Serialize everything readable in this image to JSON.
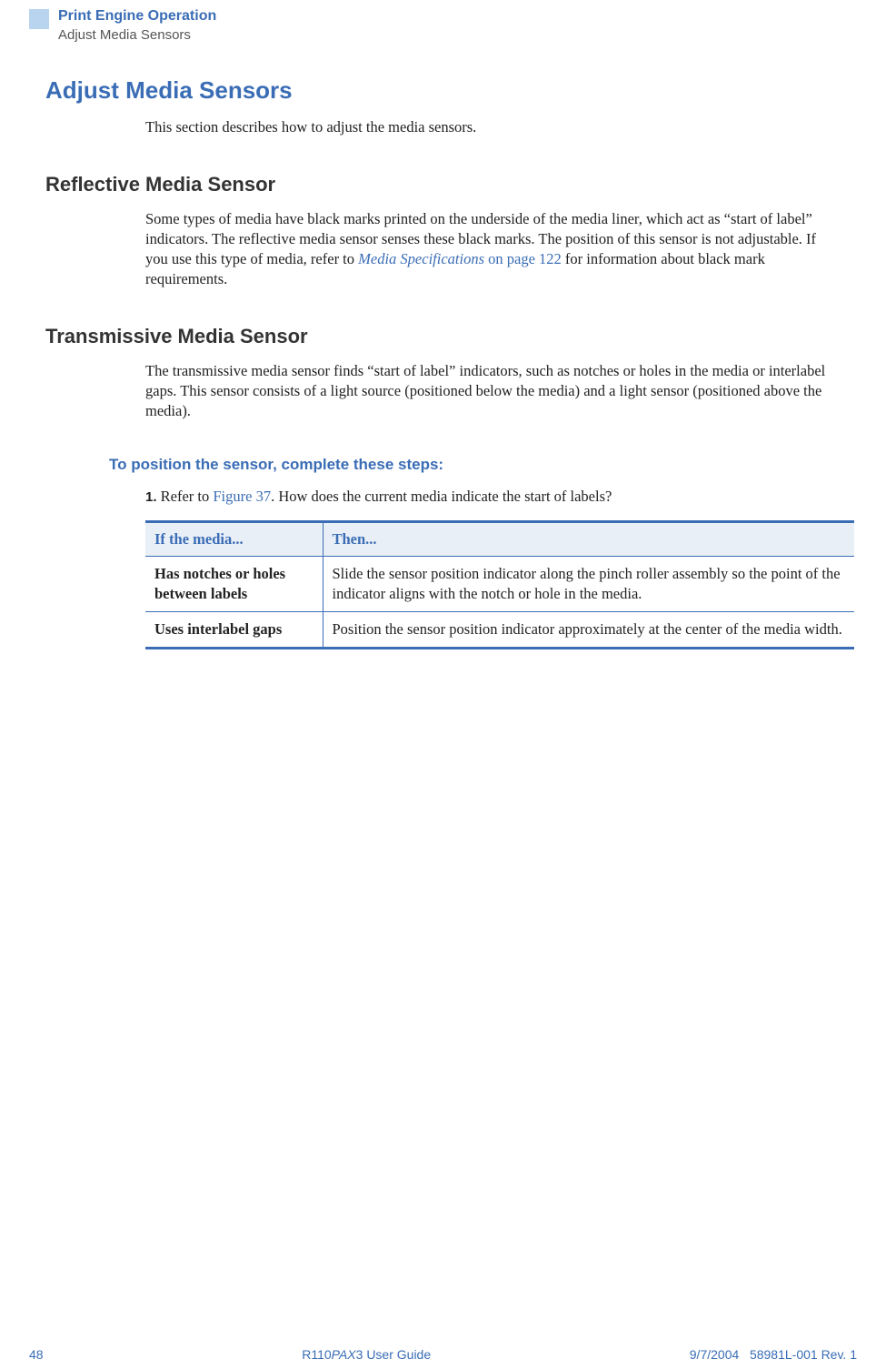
{
  "header": {
    "chapter": "Print Engine Operation",
    "section": "Adjust Media Sensors"
  },
  "mainHeading": "Adjust Media Sensors",
  "intro": "This section describes how to adjust the media sensors.",
  "reflective": {
    "heading": "Reflective Media Sensor",
    "body_before_link": "Some types of media have black marks printed on the underside of the media liner, which act as “start of label” indicators. The reflective media sensor senses these black marks. The position of this sensor is not adjustable. If you use this type of media, refer to ",
    "link_text": "Media Specifications",
    "link_page": " on page 122",
    "body_after_link": " for information about black mark requirements."
  },
  "transmissive": {
    "heading": "Transmissive Media Sensor",
    "body": "The transmissive media sensor finds “start of label” indicators, such as notches or holes in the media or interlabel gaps. This sensor consists of a light source (positioned below the media) and a light sensor (positioned above the media)."
  },
  "steps": {
    "heading": "To position the sensor, complete these steps:",
    "step1_number": "1.",
    "step1_before_link": " Refer to ",
    "step1_link": "Figure 37",
    "step1_after_link": ". How does the current media indicate the start of labels?"
  },
  "table": {
    "header_col1": "If the media...",
    "header_col2": "Then...",
    "rows": [
      {
        "col1": "Has notches or holes between labels",
        "col2": "Slide the sensor position indicator along the pinch roller assembly so the point of the indicator aligns with the notch or hole in the media."
      },
      {
        "col1": "Uses interlabel gaps",
        "col2": "Position the sensor position indicator approximately at the center of the media width."
      }
    ]
  },
  "footer": {
    "page": "48",
    "guide_prefix": "R110",
    "guide_ital": "PAX",
    "guide_suffix": "3 User Guide",
    "date": "9/7/2004",
    "docnum": "58981L-001 Rev. 1"
  },
  "colors": {
    "primary_blue": "#3a6db5",
    "light_blue": "#b9d4ef",
    "table_header_bg": "#e9eff7",
    "text": "#222"
  }
}
